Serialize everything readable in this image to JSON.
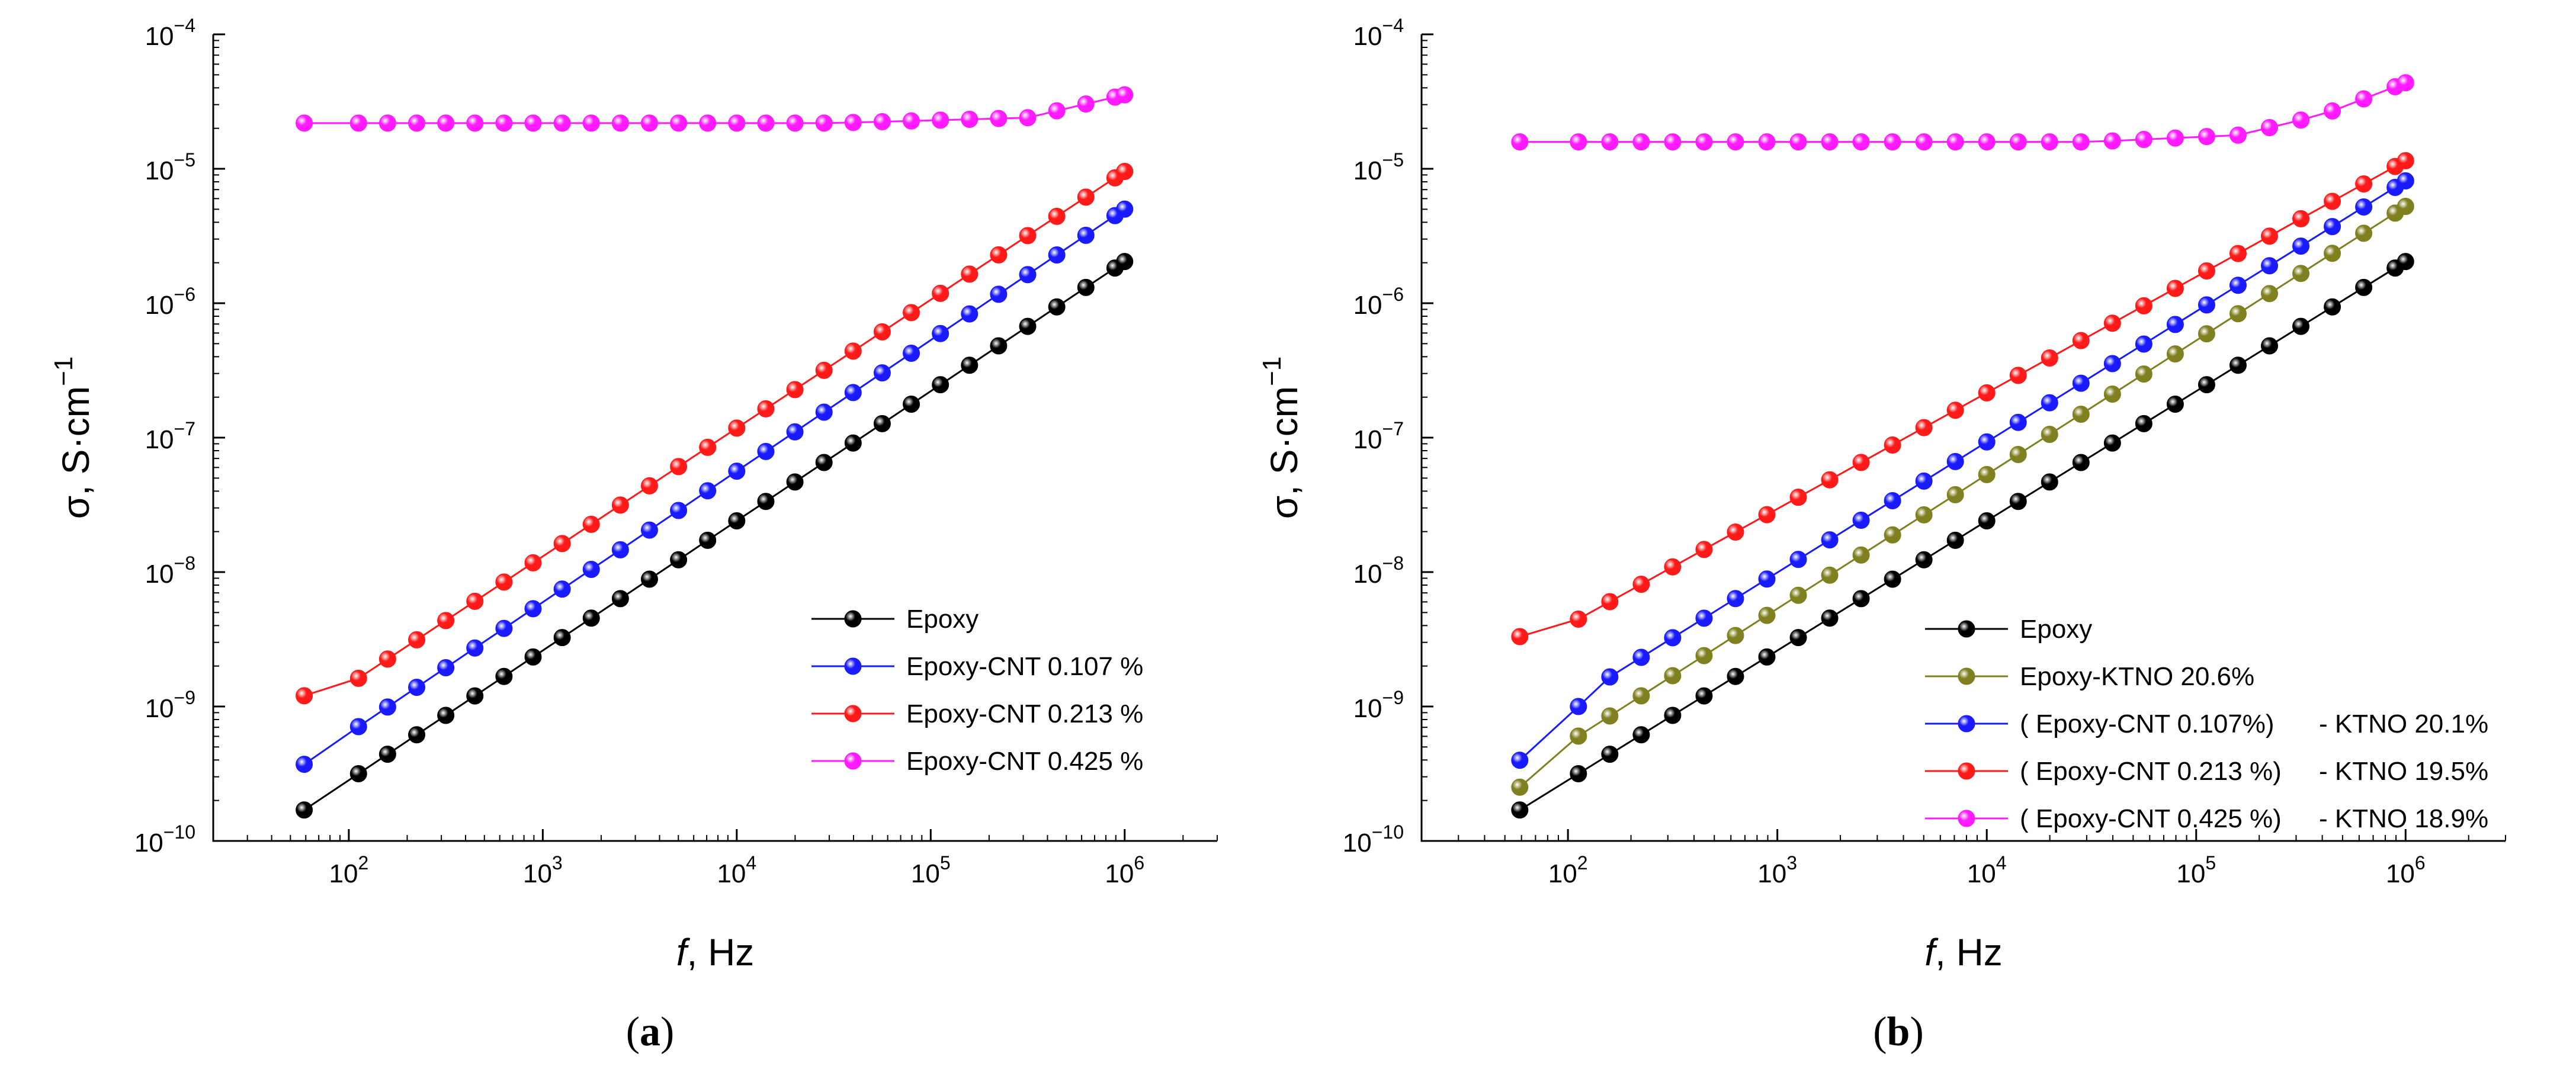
{
  "chart_data": [
    {
      "type": "scatter",
      "panel_label": "(a)",
      "xlabel_italic": "f",
      "xlabel_rest": ", Hz",
      "ylabel_text": "σ, S·cm",
      "ylabel_sup": "−1",
      "x_scale": "log",
      "y_scale": "log",
      "xlim": [
        20,
        3000000
      ],
      "ylim": [
        1e-10,
        0.0001
      ],
      "x_ticks": [
        {
          "base": "10",
          "exp": "2"
        },
        {
          "base": "10",
          "exp": "3"
        },
        {
          "base": "10",
          "exp": "4"
        },
        {
          "base": "10",
          "exp": "5"
        },
        {
          "base": "10",
          "exp": "6"
        }
      ],
      "y_ticks": [
        {
          "base": "10",
          "exp": "−10"
        },
        {
          "base": "10",
          "exp": "−9"
        },
        {
          "base": "10",
          "exp": "−8"
        },
        {
          "base": "10",
          "exp": "−7"
        },
        {
          "base": "10",
          "exp": "−6"
        },
        {
          "base": "10",
          "exp": "−5"
        },
        {
          "base": "10",
          "exp": "−4"
        }
      ],
      "legend_position": "lower-right",
      "series": [
        {
          "name": "Epoxy",
          "color": "#000000",
          "log_y_at_log_x": [
            [
              1.77,
              -9.77
            ],
            [
              6.0,
              -5.69
            ]
          ]
        },
        {
          "name": "Epoxy-CNT 0.107 %",
          "color": "#1a1aff",
          "log_y_at_log_x": [
            [
              1.77,
              -9.43
            ],
            [
              2.05,
              -9.15
            ],
            [
              6.0,
              -5.3
            ]
          ]
        },
        {
          "name": "Epoxy-CNT 0.213 %",
          "color": "#ff1a1a",
          "log_y_at_log_x": [
            [
              1.77,
              -8.92
            ],
            [
              2.05,
              -8.79
            ],
            [
              6.0,
              -5.02
            ]
          ]
        },
        {
          "name": "Epoxy-CNT 0.425 %",
          "color": "#ff1aff",
          "log_y_at_log_x": [
            [
              1.77,
              -4.66
            ],
            [
              4.5,
              -4.66
            ],
            [
              5.5,
              -4.62
            ],
            [
              6.0,
              -4.45
            ]
          ]
        }
      ]
    },
    {
      "type": "scatter",
      "panel_label": "(b)",
      "xlabel_italic": "f",
      "xlabel_rest": ", Hz",
      "ylabel_text": "σ, S·cm",
      "ylabel_sup": "−1",
      "x_scale": "log",
      "y_scale": "log",
      "xlim": [
        20,
        3000000
      ],
      "ylim": [
        1e-10,
        0.0001
      ],
      "x_ticks": [
        {
          "base": "10",
          "exp": "2"
        },
        {
          "base": "10",
          "exp": "3"
        },
        {
          "base": "10",
          "exp": "4"
        },
        {
          "base": "10",
          "exp": "5"
        },
        {
          "base": "10",
          "exp": "6"
        }
      ],
      "y_ticks": [
        {
          "base": "10",
          "exp": "−10"
        },
        {
          "base": "10",
          "exp": "−9"
        },
        {
          "base": "10",
          "exp": "−8"
        },
        {
          "base": "10",
          "exp": "−7"
        },
        {
          "base": "10",
          "exp": "−6"
        },
        {
          "base": "10",
          "exp": "−5"
        },
        {
          "base": "10",
          "exp": "−4"
        }
      ],
      "legend_position": "lower-right",
      "series": [
        {
          "name": "Epoxy",
          "label_part2": "",
          "color": "#000000",
          "log_y_at_log_x": [
            [
              1.77,
              -9.77
            ],
            [
              6.0,
              -5.69
            ]
          ]
        },
        {
          "name": "Epoxy-KTNO 20.6%",
          "label_part2": "",
          "color": "#808020",
          "log_y_at_log_x": [
            [
              1.77,
              -9.6
            ],
            [
              2.05,
              -9.22
            ],
            [
              6.0,
              -5.28
            ]
          ]
        },
        {
          "name": "( Epoxy-CNT 0.107%)",
          "label_part2": "- KTNO 20.1%",
          "color": "#1a1aff",
          "log_y_at_log_x": [
            [
              1.77,
              -9.4
            ],
            [
              2.05,
              -9.0
            ],
            [
              2.2,
              -8.78
            ],
            [
              6.0,
              -5.09
            ]
          ]
        },
        {
          "name": "( Epoxy-CNT 0.213 %)",
          "label_part2": "- KTNO 19.5%",
          "color": "#ff1a1a",
          "log_y_at_log_x": [
            [
              1.77,
              -8.48
            ],
            [
              2.05,
              -8.35
            ],
            [
              6.0,
              -4.94
            ]
          ]
        },
        {
          "name": "( Epoxy-CNT 0.425 %)",
          "label_part2": "- KTNO 18.9%",
          "color": "#ff1aff",
          "log_y_at_log_x": [
            [
              1.77,
              -4.8
            ],
            [
              4.5,
              -4.8
            ],
            [
              5.2,
              -4.75
            ],
            [
              5.6,
              -4.6
            ],
            [
              6.0,
              -4.36
            ]
          ]
        }
      ]
    }
  ]
}
